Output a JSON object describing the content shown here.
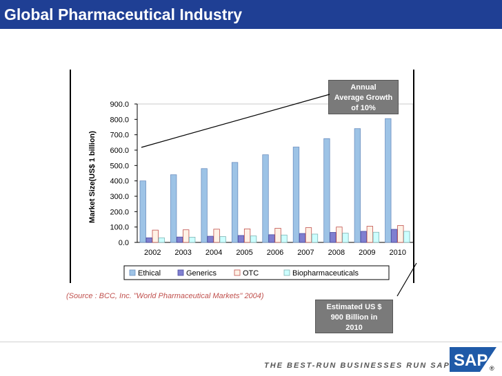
{
  "page": {
    "title": "Global Pharmaceutical Industry",
    "source": "(Source : BCC, Inc. \"World Pharmaceutical Markets\" 2004)",
    "callout_growth": [
      "Annual",
      "Average Growth",
      "of 10%"
    ],
    "callout_estimate": [
      "Estimated US $",
      "900 Billion in",
      "2010"
    ],
    "tagline": "THE BEST-RUN BUSINESSES RUN SAP",
    "logo_text": "SAP",
    "logo_mark": "®"
  },
  "colors": {
    "title_bar": "#1f3f94",
    "ethical": "#9dc3e6",
    "generics": "#7f7fd0",
    "otc": "#fff2e6",
    "otc_border": "#c0504d",
    "biopharmaceuticals": "#ccffff",
    "callout": "#7a7a7a",
    "source_text": "#c0504d",
    "logo": "#1f5aa8"
  },
  "chart_data": {
    "type": "bar",
    "categories": [
      "2002",
      "2003",
      "2004",
      "2005",
      "2006",
      "2007",
      "2008",
      "2009",
      "2010"
    ],
    "series": [
      {
        "name": "Ethical",
        "values": [
          400,
          440,
          480,
          520,
          570,
          620,
          675,
          740,
          805
        ]
      },
      {
        "name": "Generics",
        "values": [
          30,
          35,
          40,
          45,
          50,
          58,
          65,
          72,
          85
        ]
      },
      {
        "name": "OTC",
        "values": [
          80,
          82,
          86,
          88,
          92,
          96,
          100,
          105,
          110
        ]
      },
      {
        "name": "Biopharmaceuticals",
        "values": [
          30,
          34,
          38,
          42,
          48,
          54,
          60,
          66,
          72
        ]
      }
    ],
    "ylabel": "Market Size(US$ 1 billion)",
    "xlabel": "",
    "ylim": [
      0,
      900
    ],
    "yticks": [
      "0.0",
      "100.0",
      "200.0",
      "300.0",
      "400.0",
      "500.0",
      "600.0",
      "700.0",
      "800.0",
      "900.0"
    ],
    "grid": false,
    "legend": "bottom"
  }
}
